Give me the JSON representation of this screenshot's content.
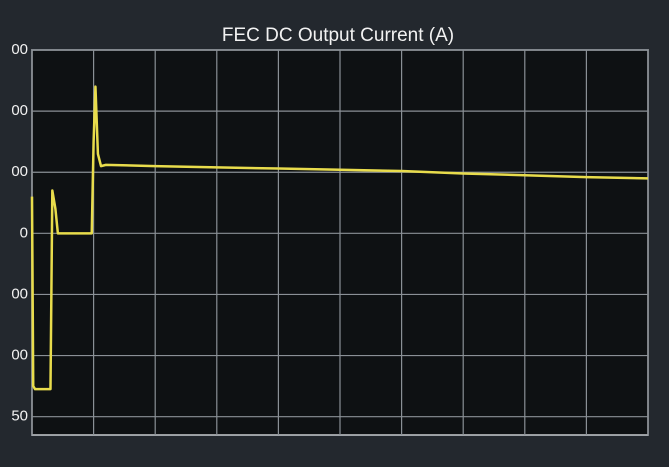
{
  "chart_data": {
    "type": "line",
    "title": "FEC DC Output Current (A)",
    "x": [
      0,
      0.02,
      0.05,
      0.1,
      0.3,
      0.33,
      0.38,
      0.42,
      0.5,
      0.97,
      1.0,
      1.03,
      1.07,
      1.12,
      1.2,
      2,
      3,
      4,
      5,
      6,
      7,
      8,
      9,
      10
    ],
    "series": [
      {
        "color": "#e8dc4c",
        "values": [
          60,
          -250,
          -255,
          -255,
          -255,
          70,
          40,
          0,
          0,
          0,
          150,
          240,
          130,
          110,
          112,
          110,
          108,
          106,
          104,
          102,
          98,
          95,
          92,
          90
        ]
      }
    ],
    "xlim": [
      0,
      10
    ],
    "xticks": [
      0,
      1,
      2,
      3,
      4,
      5,
      6,
      7,
      8,
      9,
      10
    ],
    "ylim": [
      -330,
      300
    ],
    "yticks": [
      {
        "value": 300,
        "label": "00"
      },
      {
        "value": 200,
        "label": "00"
      },
      {
        "value": 100,
        "label": "00"
      },
      0,
      {
        "value": -100,
        "label": "00"
      },
      {
        "value": -200,
        "label": "00"
      },
      {
        "value": -300,
        "label": "50"
      }
    ],
    "grid": true
  }
}
